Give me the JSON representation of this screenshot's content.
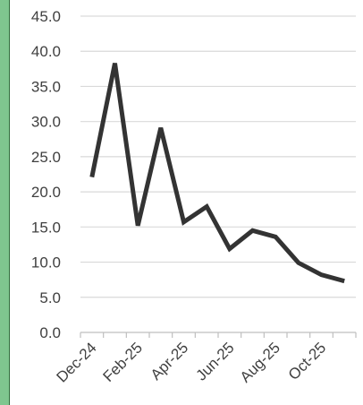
{
  "chart_data": {
    "type": "line",
    "title": "",
    "xlabel": "",
    "ylabel": "",
    "ylim": [
      0,
      45
    ],
    "y_ticks": [
      "0.0",
      "5.0",
      "10.0",
      "15.0",
      "20.0",
      "25.0",
      "30.0",
      "35.0",
      "40.0",
      "45.0"
    ],
    "x_tick_labels": [
      "Dec-24",
      "Feb-25",
      "Apr-25",
      "Jun-25",
      "Aug-25",
      "Oct-25"
    ],
    "grid": true,
    "legend": "none",
    "series_color": "#333333",
    "x": [
      "Dec-24",
      "Jan-25",
      "Feb-25",
      "Mar-25",
      "Apr-25",
      "May-25",
      "Jun-25",
      "Jul-25",
      "Aug-25",
      "Sep-25",
      "Oct-25",
      "Nov-25"
    ],
    "series": [
      {
        "values": [
          22.1,
          38.3,
          15.2,
          29.1,
          15.7,
          17.9,
          11.9,
          14.5,
          13.6,
          9.9,
          8.2,
          7.3
        ]
      }
    ]
  }
}
